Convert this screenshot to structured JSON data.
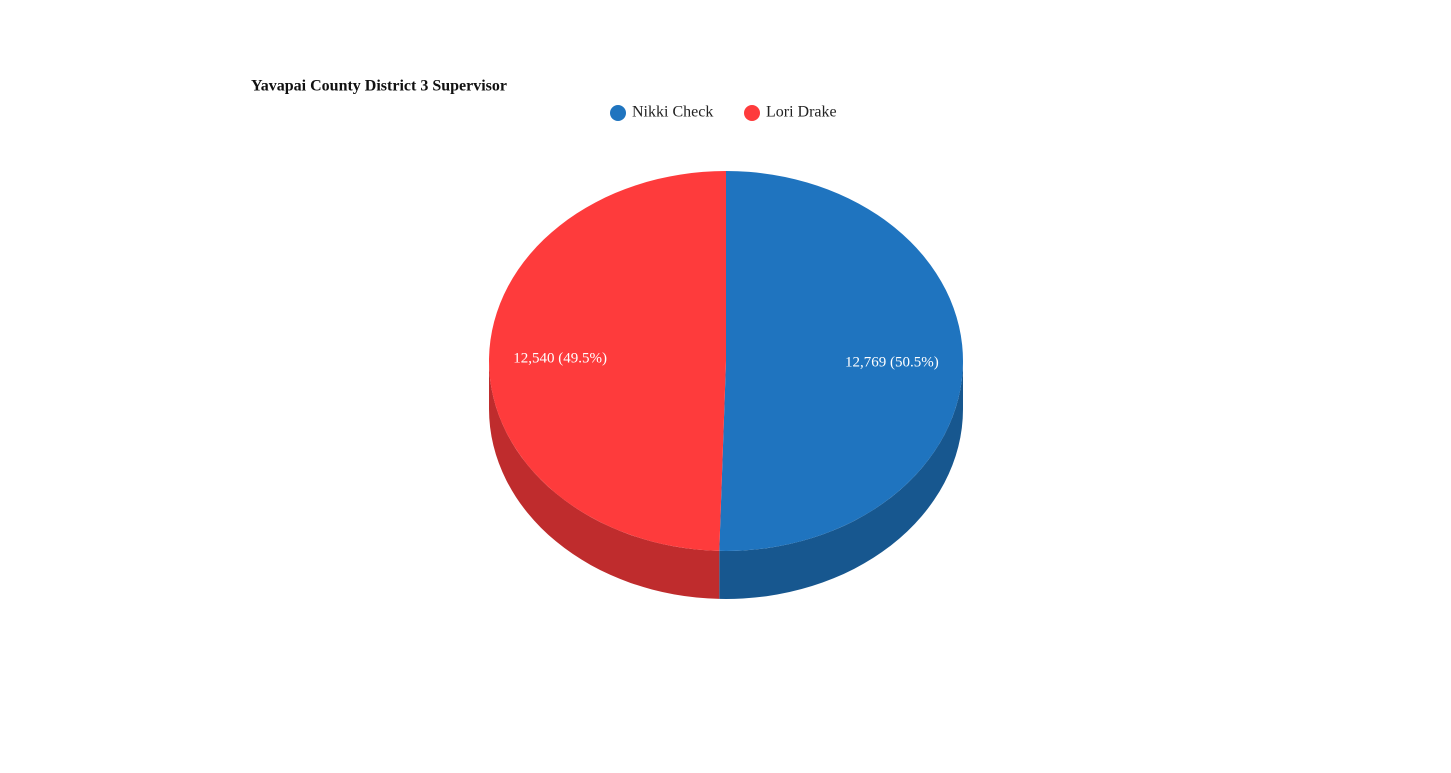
{
  "chart_data": {
    "type": "pie",
    "title": "Yavapai County District 3 Supervisor",
    "categories": [
      "Nikki Check",
      "Lori Drake"
    ],
    "values": [
      12769,
      12540
    ],
    "value_labels": [
      "12,769 (50.5%)",
      "12,540 (49.5%)"
    ],
    "colors": [
      "#1f74bf",
      "#fe3b3c"
    ],
    "legend": "top"
  }
}
